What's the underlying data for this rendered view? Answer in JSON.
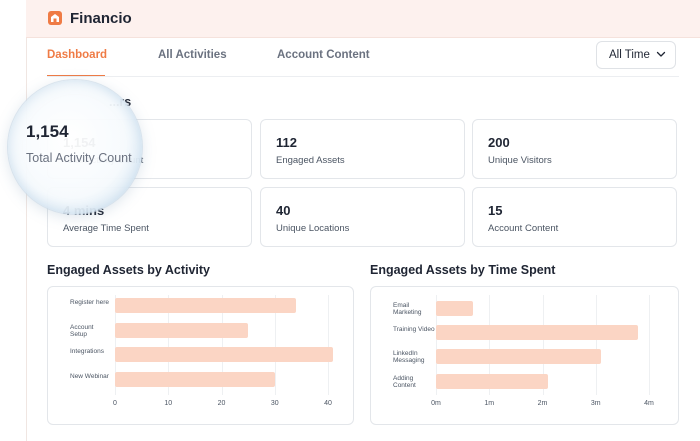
{
  "app": {
    "title": "Financio"
  },
  "tabs": [
    {
      "label": "Dashboard",
      "active": true
    },
    {
      "label": "All Activities",
      "active": false
    },
    {
      "label": "Account Content",
      "active": false
    }
  ],
  "time_filter": {
    "value": "All Time",
    "icon": "chevron-down-icon"
  },
  "section": {
    "title": "...rs"
  },
  "stats": [
    {
      "value": "1,154",
      "label": "Total Activity Count"
    },
    {
      "value": "112",
      "label": "Engaged Assets"
    },
    {
      "value": "200",
      "label": "Unique Visitors"
    },
    {
      "value": "4 mins",
      "label": "Average Time Spent"
    },
    {
      "value": "40",
      "label": "Unique Locations"
    },
    {
      "value": "15",
      "label": "Account Content"
    }
  ],
  "colors": {
    "accent": "#ef7b45",
    "bar": "#fbd5c4",
    "titlebar": "#fdf1ee"
  },
  "chart_data": [
    {
      "type": "bar",
      "orientation": "horizontal",
      "title": "Engaged Assets by Activity",
      "categories": [
        "Register here",
        "Account Setup",
        "Integrations",
        "New Webinar"
      ],
      "values": [
        34,
        25,
        41,
        30
      ],
      "xticks": [
        "0",
        "10",
        "20",
        "30",
        "40"
      ],
      "xlim": [
        0,
        40
      ],
      "grid": true
    },
    {
      "type": "bar",
      "orientation": "horizontal",
      "title": "Engaged Assets by Time Spent",
      "categories": [
        "Email Marketing",
        "Training Video",
        "LinkedIn Messaging",
        "Adding Content"
      ],
      "values": [
        0.7,
        3.8,
        3.1,
        2.1
      ],
      "xticks": [
        "0m",
        "1m",
        "2m",
        "3m",
        "4m"
      ],
      "xlim": [
        0,
        4
      ],
      "grid": true
    }
  ]
}
